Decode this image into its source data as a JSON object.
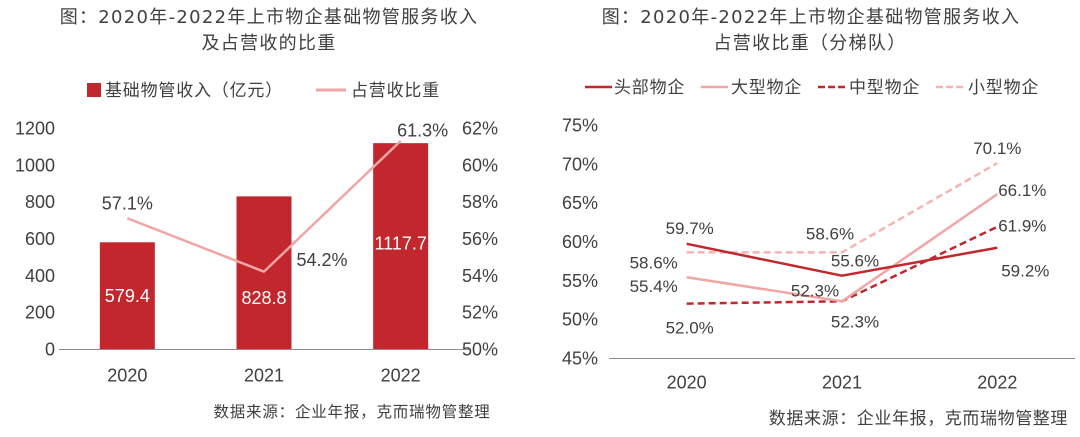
{
  "chart_data": [
    {
      "type": "bar",
      "title": "图：2020年-2022年上市物企基础物管服务收入",
      "subtitle": "及占营收的比重",
      "categories": [
        "2020",
        "2021",
        "2022"
      ],
      "bar_series": {
        "name": "基础物管收入（亿元）",
        "values": [
          579.4,
          828.8,
          1117.7
        ],
        "color": "#c1272d"
      },
      "line_series": {
        "name": "占营收比重",
        "values": [
          57.1,
          54.2,
          61.3
        ],
        "labels": [
          "57.1%",
          "54.2%",
          "61.3%"
        ],
        "color": "#f2a5a4"
      },
      "y_left": {
        "ylim": [
          0,
          1200
        ],
        "ticks": [
          0,
          200,
          400,
          600,
          800,
          1000,
          1200
        ]
      },
      "y_right": {
        "ylim": [
          50,
          62
        ],
        "ticks": [
          50,
          52,
          54,
          56,
          58,
          60,
          62
        ],
        "tick_labels": [
          "50%",
          "52%",
          "54%",
          "56%",
          "58%",
          "60%",
          "62%"
        ]
      },
      "source": "数据来源：企业年报，克而瑞物管整理"
    },
    {
      "type": "line",
      "title": "图：2020年-2022年上市物企基础物管服务收入",
      "subtitle": "占营收比重（分梯队）",
      "categories": [
        "2020",
        "2021",
        "2022"
      ],
      "ylim": [
        45,
        75
      ],
      "ticks": [
        45,
        50,
        55,
        60,
        65,
        70,
        75
      ],
      "tick_labels": [
        "45%",
        "50%",
        "55%",
        "60%",
        "65%",
        "70%",
        "75%"
      ],
      "series": [
        {
          "name": "头部物企",
          "values": [
            59.7,
            55.6,
            59.2
          ],
          "labels": [
            "59.7%",
            "55.6%",
            "59.2%"
          ],
          "color": "#c1272d",
          "dashed": false
        },
        {
          "name": "大型物企",
          "values": [
            55.4,
            52.3,
            66.1
          ],
          "labels": [
            "55.4%",
            "52.3%",
            "66.1%"
          ],
          "color": "#f2a5a4",
          "dashed": false
        },
        {
          "name": "中型物企",
          "values": [
            52.0,
            52.3,
            61.9
          ],
          "labels": [
            "52.0%",
            "52.3%",
            "61.9%"
          ],
          "color": "#c1272d",
          "dashed": true
        },
        {
          "name": "小型物企",
          "values": [
            58.6,
            58.6,
            70.1
          ],
          "labels": [
            "58.6%",
            "58.6%",
            "70.1%"
          ],
          "color": "#f5b4b2",
          "dashed": true
        }
      ],
      "source": "数据来源：企业年报，克而瑞物管整理"
    }
  ],
  "colors": {
    "axis": "#8c8c8c"
  }
}
